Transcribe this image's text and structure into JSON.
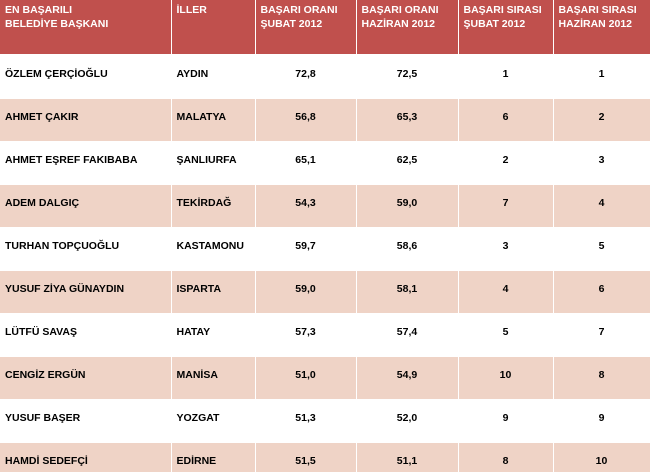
{
  "table": {
    "headers": [
      "EN BAŞARILI\nBELEDİYE BAŞKANI",
      "İLLER",
      "BAŞARI ORANI\nŞUBAT 2012",
      "BAŞARI ORANI\nHAZİRAN 2012",
      "BAŞARI SIRASI\nŞUBAT 2012",
      "BAŞARI SIRASI\nHAZİRAN 2012"
    ],
    "rows": [
      [
        "ÖZLEM ÇERÇİOĞLU",
        "AYDIN",
        "72,8",
        "72,5",
        "1",
        "1"
      ],
      [
        "AHMET ÇAKIR",
        "MALATYA",
        "56,8",
        "65,3",
        "6",
        "2"
      ],
      [
        "AHMET EŞREF FAKIBABA",
        "ŞANLIURFA",
        "65,1",
        "62,5",
        "2",
        "3"
      ],
      [
        "ADEM DALGIÇ",
        "TEKİRDAĞ",
        "54,3",
        "59,0",
        "7",
        "4"
      ],
      [
        "TURHAN TOPÇUOĞLU",
        "KASTAMONU",
        "59,7",
        "58,6",
        "3",
        "5"
      ],
      [
        "YUSUF ZİYA GÜNAYDIN",
        "ISPARTA",
        "59,0",
        "58,1",
        "4",
        "6"
      ],
      [
        "LÜTFÜ SAVAŞ",
        "HATAY",
        "57,3",
        "57,4",
        "5",
        "7"
      ],
      [
        "CENGİZ ERGÜN",
        "MANİSA",
        "51,0",
        "54,9",
        "10",
        "8"
      ],
      [
        "YUSUF BAŞER",
        "YOZGAT",
        "51,3",
        "52,0",
        "9",
        "9"
      ],
      [
        "HAMDİ SEDEFÇİ",
        "EDİRNE",
        "51,5",
        "51,1",
        "8",
        "10"
      ]
    ]
  },
  "colors": {
    "header_bg": "#c0504d",
    "row_band": "#efd3c6",
    "row_plain": "#ffffff"
  }
}
